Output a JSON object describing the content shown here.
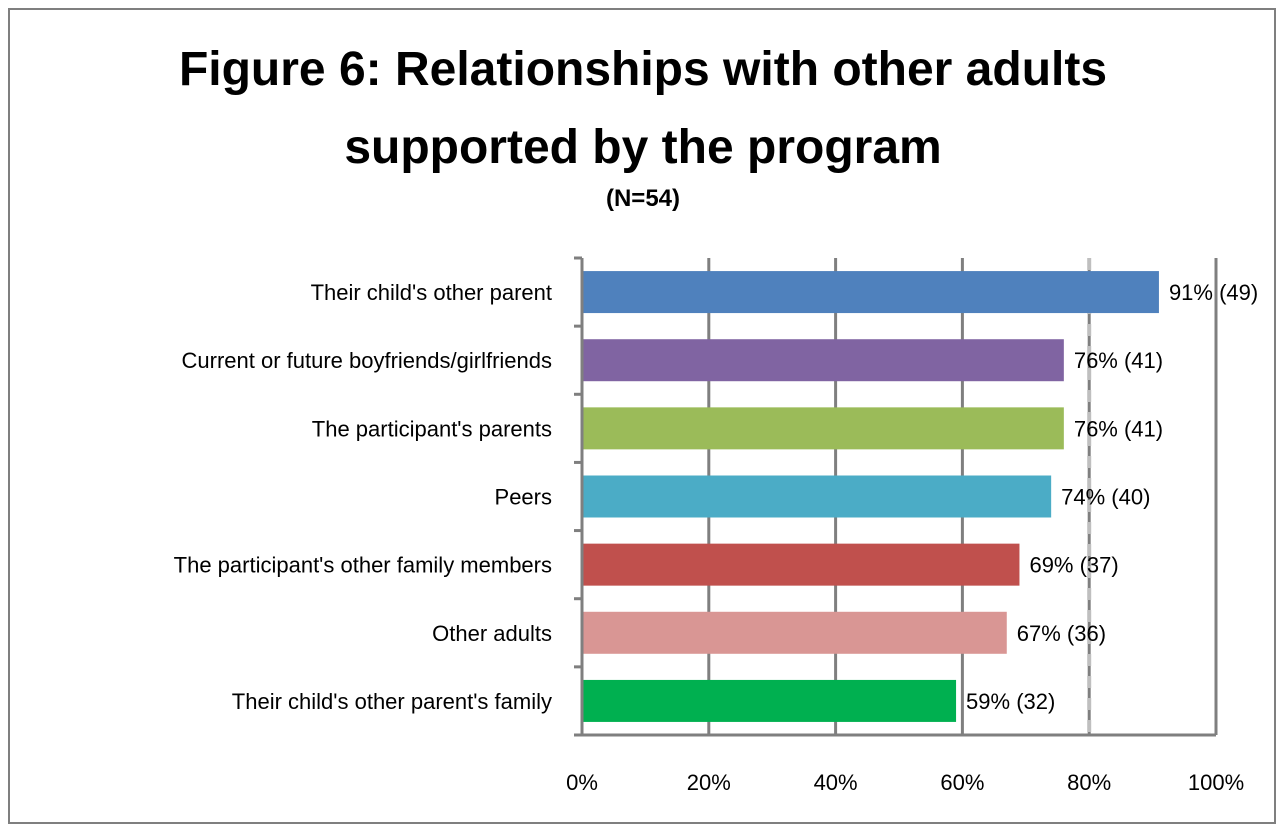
{
  "chart_data": {
    "type": "bar",
    "orientation": "horizontal",
    "title": [
      "Figure 6: Relationships with other adults",
      "supported by the program"
    ],
    "subtitle": "(N=54)",
    "categories": [
      "Their child's other parent",
      "Current or future boyfriends/girlfriends",
      "The participant's parents",
      "Peers",
      "The participant's other family  members",
      "Other adults",
      "Their child's other parent's family"
    ],
    "values": [
      91,
      76,
      76,
      74,
      69,
      67,
      59
    ],
    "data_labels": [
      "91% (49)",
      "76% (41)",
      "76% (41)",
      "74% (40)",
      "69% (37)",
      "67% (36)",
      "59% (32)"
    ],
    "colors": [
      "#4f81bd",
      "#8064a2",
      "#9bbb59",
      "#4bacc6",
      "#c0504d",
      "#d99694",
      "#00b050"
    ],
    "xlim": [
      0,
      100
    ],
    "xticks": [
      0,
      20,
      40,
      60,
      80,
      100
    ],
    "xtick_labels": [
      "0%",
      "20%",
      "40%",
      "60%",
      "80%",
      "100%"
    ],
    "grid": "vertical",
    "reference_line": 80,
    "xlabel": "",
    "ylabel": ""
  }
}
